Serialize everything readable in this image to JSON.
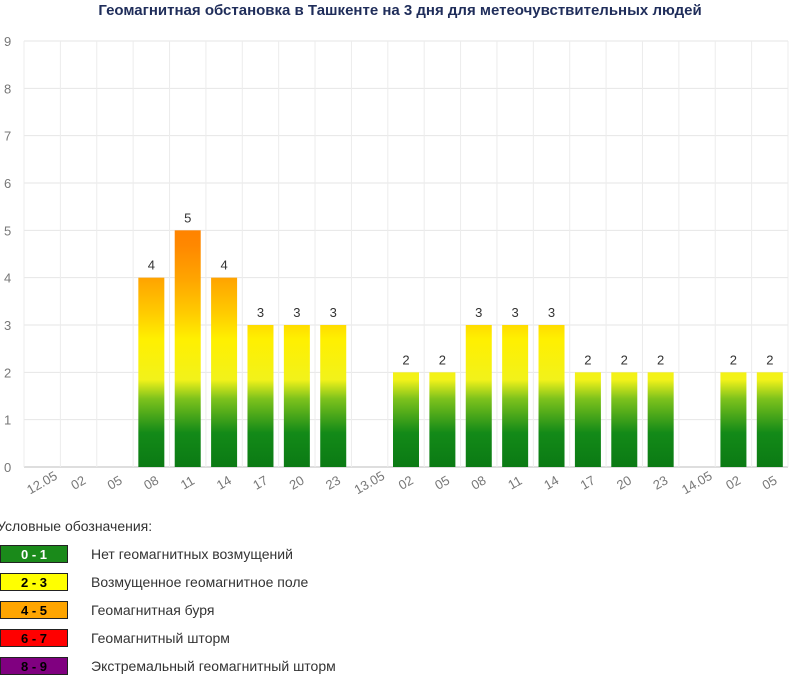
{
  "chart_data": {
    "type": "bar",
    "title": "Геомагнитная обстановка в Ташкенте на 3 дня для метеочувствительных людей",
    "xlabel": "",
    "ylabel": "",
    "ylim": [
      0,
      9
    ],
    "yticks": [
      "0",
      "1",
      "2",
      "3",
      "4",
      "5",
      "6",
      "7",
      "8",
      "9"
    ],
    "grid": true,
    "categories": [
      "12.05",
      "02",
      "05",
      "08",
      "11",
      "14",
      "17",
      "20",
      "23",
      "13.05",
      "02",
      "05",
      "08",
      "11",
      "14",
      "17",
      "20",
      "23",
      "14.05",
      "02",
      "05"
    ],
    "values": [
      null,
      null,
      null,
      4,
      5,
      4,
      3,
      3,
      3,
      null,
      2,
      2,
      3,
      3,
      3,
      2,
      2,
      2,
      null,
      2,
      2
    ]
  },
  "legend": {
    "title": "Условные обозначения:",
    "items": [
      {
        "range": "0 - 1",
        "label": "Нет геомагнитных возмущений",
        "color": "#1a8a1a",
        "text_color": "#ffffff"
      },
      {
        "range": "2 - 3",
        "label": "Возмущенное геомагнитное поле",
        "color": "#ffff00",
        "text_color": "#000000"
      },
      {
        "range": "4 - 5",
        "label": "Геомагнитная буря",
        "color": "#ffa500",
        "text_color": "#000000"
      },
      {
        "range": "6 - 7",
        "label": "Геомагнитный шторм",
        "color": "#ff0000",
        "text_color": "#000000"
      },
      {
        "range": "8 - 9",
        "label": "Экстремальный геомагнитный шторм",
        "color": "#800080",
        "text_color": "#000000"
      }
    ]
  }
}
